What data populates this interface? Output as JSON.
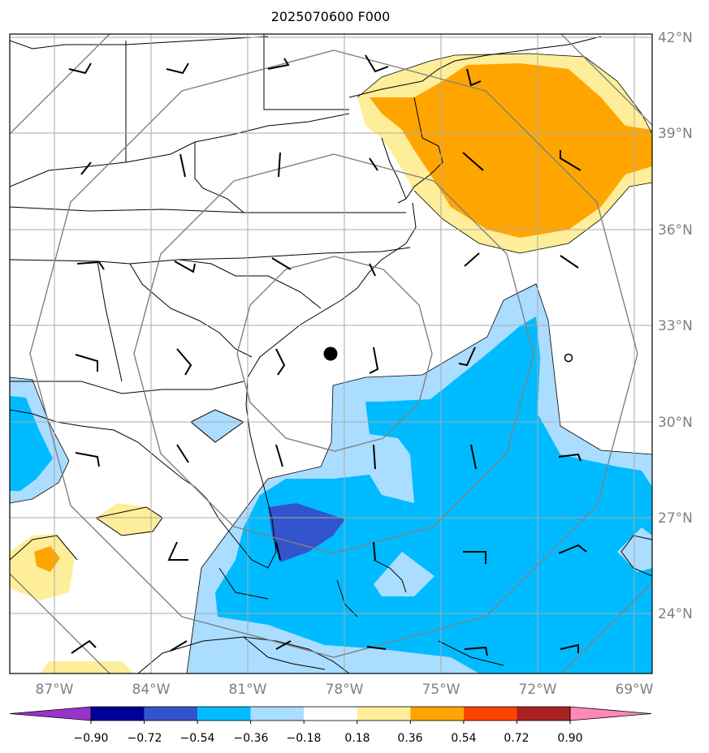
{
  "title": "2025070600 F000",
  "lat_labels": [
    "42°N",
    "39°N",
    "36°N",
    "33°N",
    "30°N",
    "27°N",
    "24°N"
  ],
  "lon_labels": [
    "87°W",
    "84°W",
    "81°W",
    "78°W",
    "75°W",
    "72°W",
    "69°W"
  ],
  "colorbar": {
    "ticks": [
      "−0.90",
      "−0.72",
      "−0.54",
      "−0.36",
      "−0.18",
      "0.18",
      "0.36",
      "0.54",
      "0.72",
      "0.90"
    ],
    "colors": [
      "#9933cc",
      "#000099",
      "#3355cc",
      "#00bbff",
      "#aaddff",
      "#ffffff",
      "#ffee99",
      "#ffa500",
      "#ff4400",
      "#aa2222",
      "#ff88bb"
    ]
  },
  "map": {
    "extent": {
      "west_lon": -88.4,
      "east_lon": -68.2,
      "south_lat": 22.3,
      "north_lat": 42.1
    },
    "storm_center": {
      "lat": 32.1,
      "lon": -78.4,
      "marker": "filled-circle"
    },
    "secondary_marker": {
      "lat": 32.0,
      "lon": -71.0,
      "marker": "open-circle"
    },
    "range_rings": 4,
    "fill_colors": {
      "light_blue": "#aaddff",
      "blue": "#00bbff",
      "dark_blue": "#3355cc",
      "light_orange": "#ffee99",
      "orange": "#ffa500"
    }
  }
}
